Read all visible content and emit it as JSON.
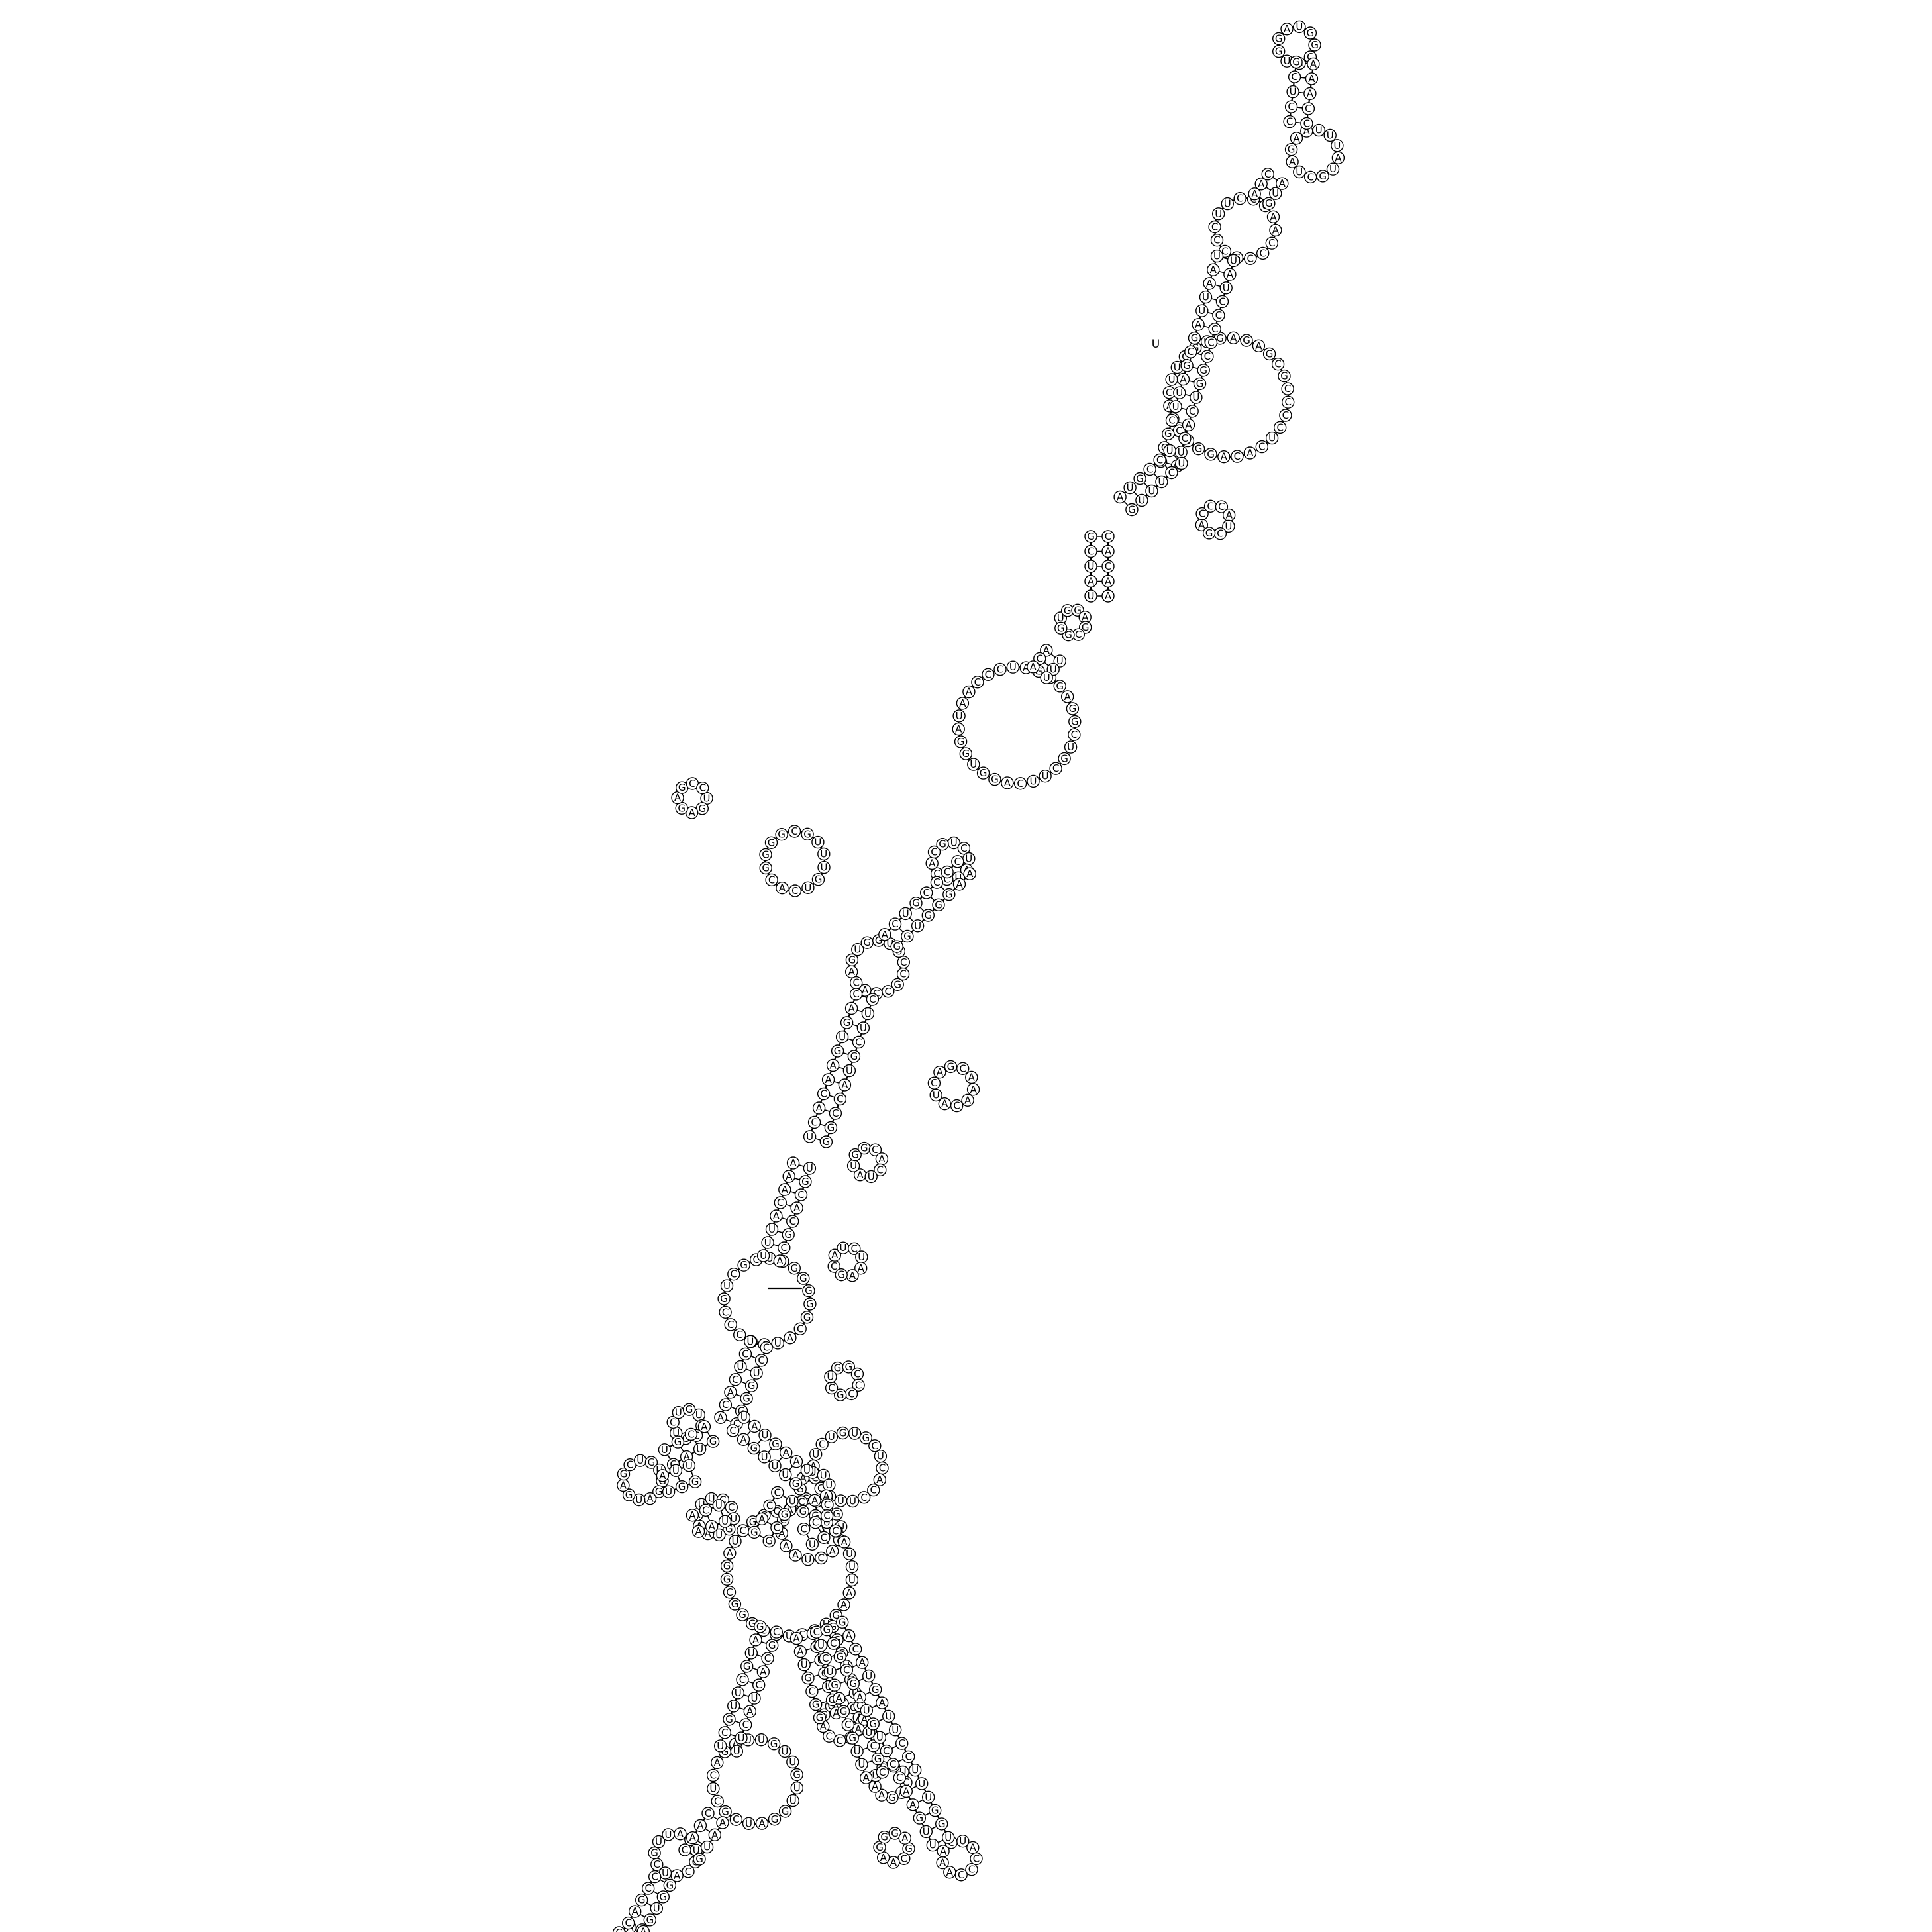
{
  "diagram": {
    "type": "rna-secondary-structure",
    "letters": "ACGU",
    "end_label": "U",
    "colors": {
      "stroke": "#000000",
      "background": "#ffffff"
    }
  }
}
